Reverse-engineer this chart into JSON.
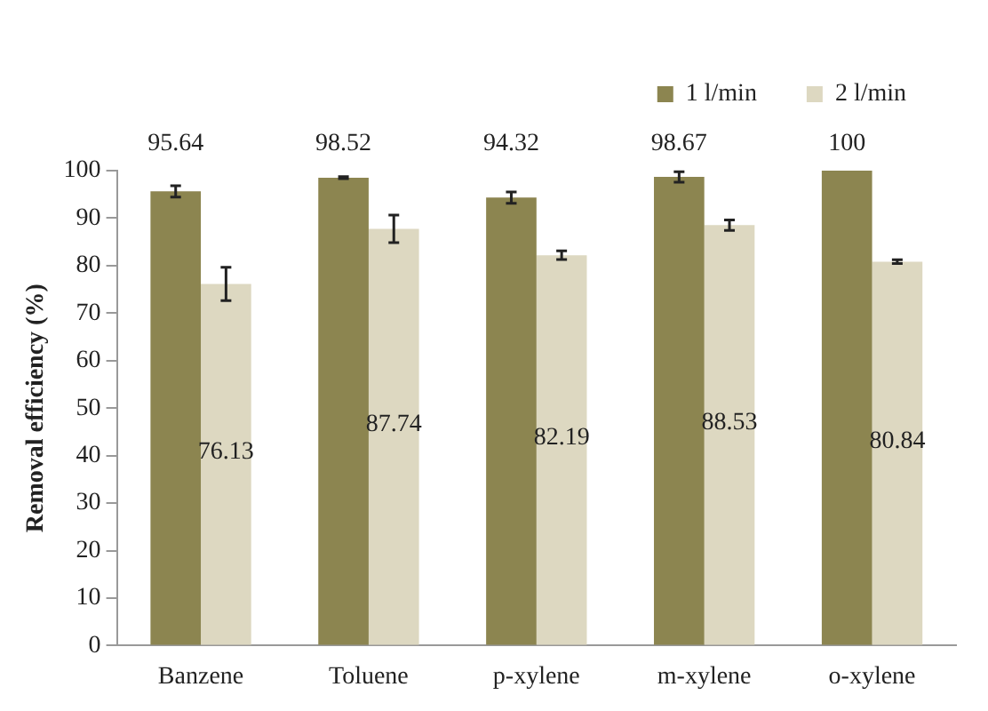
{
  "chart_data": {
    "type": "bar",
    "ylabel": "Removal efficiency (%)",
    "categories": [
      "Banzene",
      "Toluene",
      "p-xylene",
      "m-xylene",
      "o-xylene"
    ],
    "series": [
      {
        "name": "1 l/min",
        "color": "#8c8550",
        "values": [
          95.64,
          98.52,
          94.32,
          98.67,
          100
        ],
        "errors": [
          1.2,
          0.2,
          1.2,
          1.1,
          null
        ]
      },
      {
        "name": "2 l/min",
        "color": "#ddd8c1",
        "values": [
          76.13,
          87.74,
          82.19,
          88.53,
          80.84
        ],
        "errors": [
          3.5,
          2.9,
          0.9,
          1.1,
          0.4
        ]
      }
    ],
    "ylim": [
      0,
      100
    ],
    "yticks": [
      0,
      10,
      20,
      30,
      40,
      50,
      60,
      70,
      80,
      90,
      100
    ],
    "data_labels": true,
    "legend": "top",
    "grid": false
  }
}
